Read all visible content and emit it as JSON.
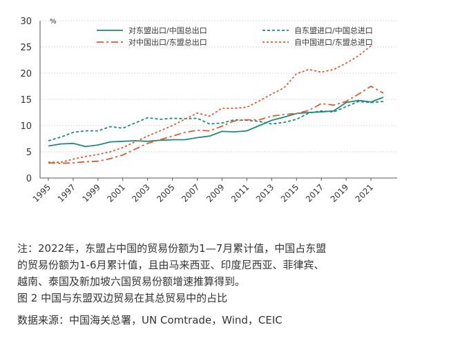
{
  "chart_data": {
    "type": "line",
    "unit": "%",
    "x": [
      1995,
      1996,
      1997,
      1998,
      1999,
      2000,
      2001,
      2002,
      2003,
      2004,
      2005,
      2006,
      2007,
      2008,
      2009,
      2010,
      2011,
      2012,
      2013,
      2014,
      2015,
      2016,
      2017,
      2018,
      2019,
      2020,
      2021,
      2022
    ],
    "x_tick_labels": [
      "1995",
      "1997",
      "1999",
      "2001",
      "2003",
      "2005",
      "2007",
      "2009",
      "2011",
      "2013",
      "2015",
      "2017",
      "2019",
      "2021"
    ],
    "ylim": [
      0,
      30
    ],
    "y_ticks": [
      0,
      5,
      10,
      15,
      20,
      25,
      30
    ],
    "legend_position": "top",
    "series": [
      {
        "name": "对东盟出口/中国总出口",
        "color": "#1a8a7a",
        "style": "solid",
        "values": [
          6.1,
          6.5,
          6.6,
          6.0,
          6.3,
          6.9,
          7.0,
          7.1,
          7.0,
          7.2,
          7.3,
          7.3,
          7.7,
          8.0,
          8.9,
          8.8,
          9.0,
          10.0,
          11.0,
          11.6,
          12.3,
          12.5,
          12.6,
          12.8,
          14.4,
          14.8,
          14.5,
          15.4
        ]
      },
      {
        "name": "自东盟进口/中国总进口",
        "color": "#1a8a7a",
        "style": "dashed",
        "values": [
          7.1,
          7.8,
          8.7,
          9.0,
          9.0,
          9.8,
          9.5,
          10.5,
          11.5,
          11.2,
          11.4,
          11.3,
          11.4,
          10.3,
          10.5,
          11.1,
          11.0,
          10.8,
          10.3,
          10.6,
          11.2,
          12.4,
          12.8,
          12.6,
          13.6,
          14.6,
          14.4,
          14.6
        ]
      },
      {
        "name": "对中国出口/东盟总出口",
        "color": "#e05a30",
        "style": "dashdot",
        "values": [
          2.9,
          2.8,
          2.9,
          3.1,
          3.2,
          3.7,
          4.4,
          5.5,
          6.6,
          7.3,
          8.0,
          8.7,
          9.1,
          9.0,
          9.9,
          10.9,
          11.1,
          11.1,
          11.8,
          12.1,
          12.3,
          12.9,
          14.2,
          13.9,
          14.6,
          16.0,
          17.5,
          16.2
        ]
      },
      {
        "name": "自中国进口/东盟总进口",
        "color": "#e05a30",
        "style": "dotted",
        "values": [
          3.0,
          3.0,
          3.6,
          4.1,
          4.5,
          5.0,
          5.8,
          6.9,
          8.0,
          9.0,
          10.0,
          11.2,
          12.4,
          11.8,
          13.3,
          13.3,
          13.5,
          14.7,
          16.0,
          17.2,
          19.9,
          20.7,
          20.2,
          20.7,
          21.9,
          23.3,
          25.2,
          null
        ]
      }
    ]
  },
  "notes": {
    "line1": "注：2022年，东盟占中国的贸易份额为1—7月累计值，中国占东盟",
    "line2": "的贸易份额为1-6月累计值，且由马来西亚、印度尼西亚、菲律宾、",
    "line3": "越南、泰国及新加坡六国贸易份额增速推算得到。",
    "caption": "图 2 中国与东盟双边贸易在其总贸易中的占比",
    "source": "数据来源：中国海关总署，UN Comtrade，Wind，CEIC"
  },
  "colors": {
    "axis": "#555555",
    "grid": "#d9d9d9"
  }
}
